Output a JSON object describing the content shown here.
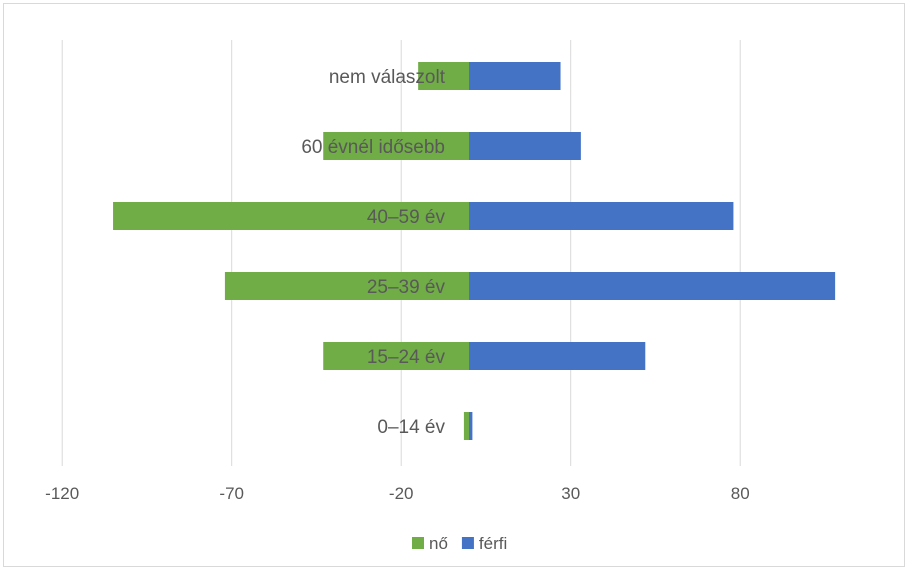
{
  "chart_data": {
    "type": "bar",
    "orientation": "horizontal",
    "stacked": true,
    "categories": [
      "nem válaszolt",
      "60 évnél idősebb",
      "40–59 év",
      "25–39 év",
      "15–24 év",
      "0–14 év"
    ],
    "series": [
      {
        "name": "nő",
        "color": "#70ad47",
        "values": [
          -15,
          -43,
          -105,
          -72,
          -43,
          -1.5
        ]
      },
      {
        "name": "férfi",
        "color": "#4472c4",
        "values": [
          27,
          33,
          78,
          108,
          52,
          1
        ]
      }
    ],
    "xticks": [
      "-120",
      "-70",
      "-20",
      "30",
      "80"
    ],
    "xlim": [
      -120,
      120
    ],
    "grid": "vertical",
    "legend": "bottom"
  }
}
